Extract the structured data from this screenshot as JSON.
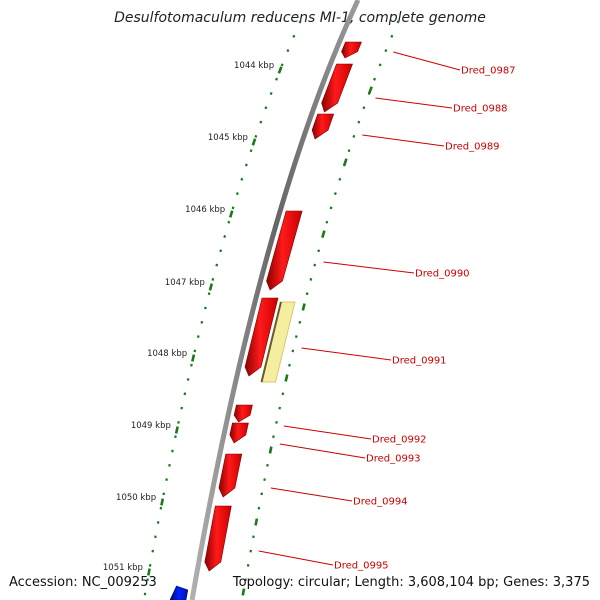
{
  "title": "Desulfotomaculum reducens MI-1, complete genome",
  "accession": "Accession: NC_009253",
  "topology": "Topology: circular; Length: 3,608,104 bp; Genes: 3,375",
  "colors": {
    "gene_forward": "#ff0000",
    "gene_reverse": "#0022ff",
    "highlight": "#f5eda0",
    "tick": "#1a7a1a",
    "backbone": "#888888",
    "label": "#cc0000"
  },
  "scale_ticks": [
    {
      "label": "1044 kbp"
    },
    {
      "label": "1045 kbp"
    },
    {
      "label": "1046 kbp"
    },
    {
      "label": "1047 kbp"
    },
    {
      "label": "1048 kbp"
    },
    {
      "label": "1049 kbp"
    },
    {
      "label": "1050 kbp"
    },
    {
      "label": "1051 kbp"
    }
  ],
  "genes": [
    {
      "label": "Dred_0987",
      "strand": "+"
    },
    {
      "label": "Dred_0988",
      "strand": "+"
    },
    {
      "label": "Dred_0989",
      "strand": "+"
    },
    {
      "label": "Dred_0990",
      "strand": "+"
    },
    {
      "label": "Dred_0991",
      "strand": "+"
    },
    {
      "label": "Dred_0992",
      "strand": "+"
    },
    {
      "label": "Dred_0993",
      "strand": "+"
    },
    {
      "label": "Dred_0994",
      "strand": "+"
    },
    {
      "label": "Dred_0995",
      "strand": "+"
    }
  ]
}
